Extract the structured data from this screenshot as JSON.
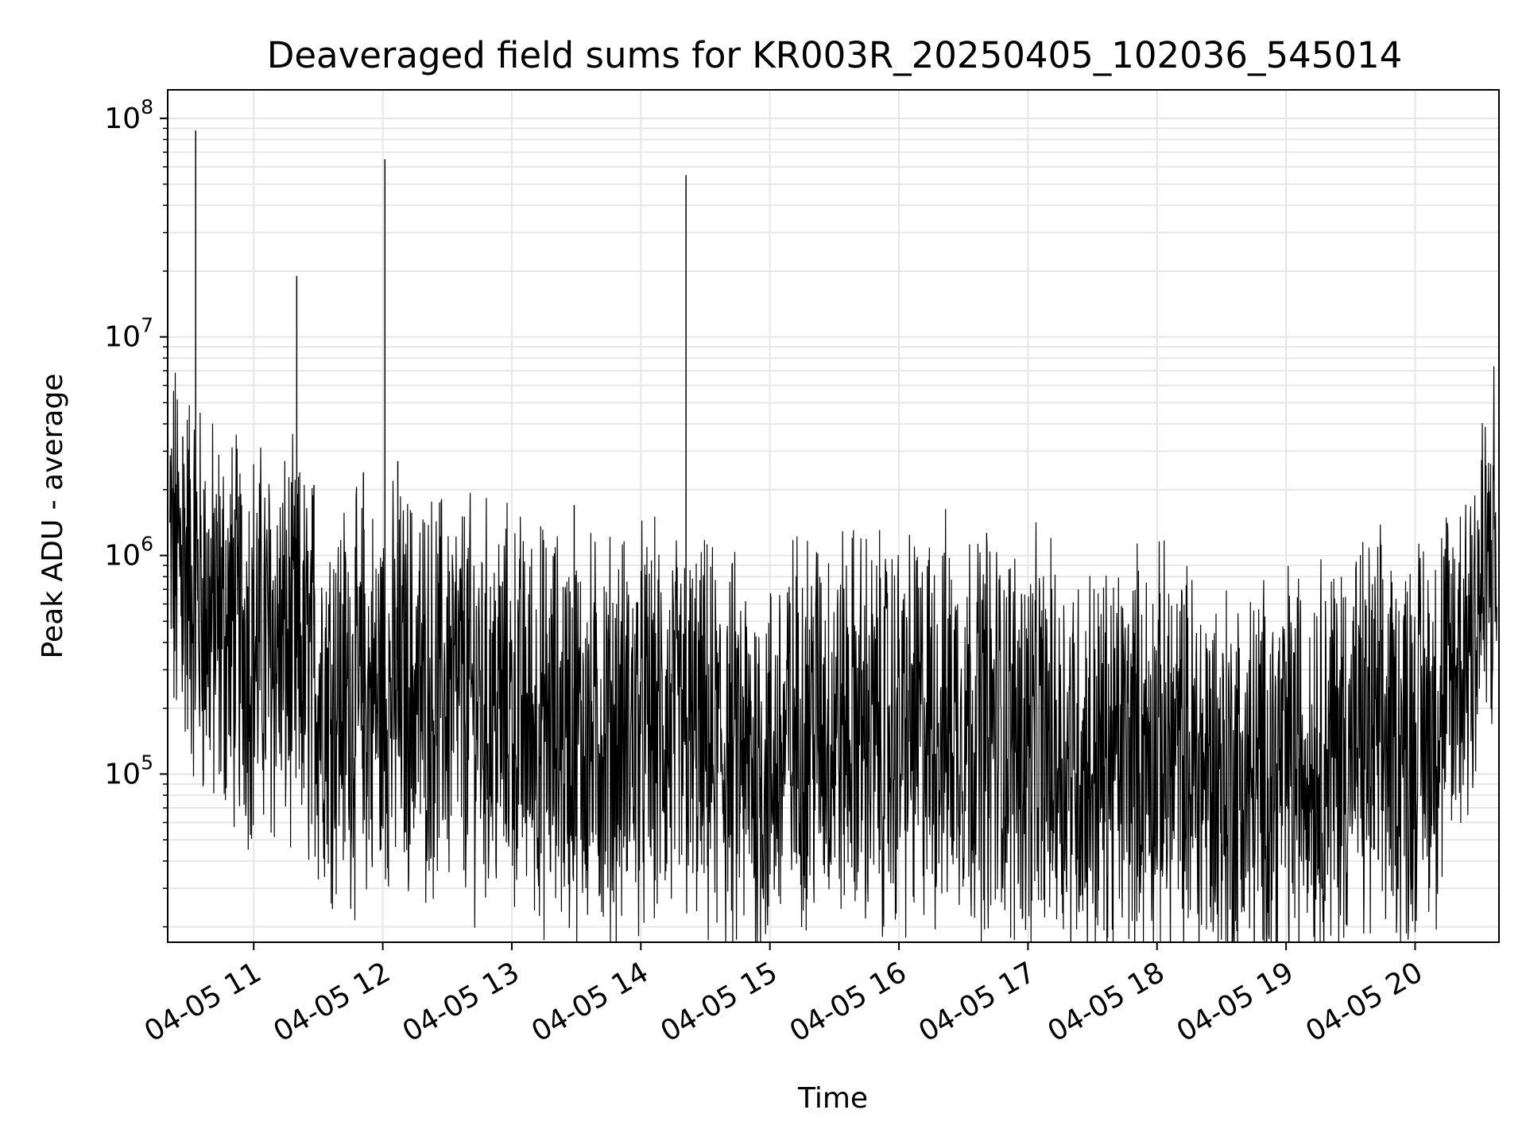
{
  "chart_data": {
    "type": "line",
    "title": "Deaveraged field sums for KR003R_20250405_102036_545014",
    "xlabel": "Time",
    "ylabel": "Peak ADU - average",
    "yscale": "log",
    "xlim": [
      "2025-04-05 10:20",
      "2025-04-05 20:39"
    ],
    "ylim": [
      17000,
      135000000
    ],
    "grid": true,
    "line_color": "#000000",
    "grid_color": "#e6e6e6",
    "x_ticks": [
      {
        "value": "2025-04-05 11:00",
        "label": "04-05 11"
      },
      {
        "value": "2025-04-05 12:00",
        "label": "04-05 12"
      },
      {
        "value": "2025-04-05 13:00",
        "label": "04-05 13"
      },
      {
        "value": "2025-04-05 14:00",
        "label": "04-05 14"
      },
      {
        "value": "2025-04-05 15:00",
        "label": "04-05 15"
      },
      {
        "value": "2025-04-05 16:00",
        "label": "04-05 16"
      },
      {
        "value": "2025-04-05 17:00",
        "label": "04-05 17"
      },
      {
        "value": "2025-04-05 18:00",
        "label": "04-05 18"
      },
      {
        "value": "2025-04-05 19:00",
        "label": "04-05 19"
      },
      {
        "value": "2025-04-05 20:00",
        "label": "04-05 20"
      }
    ],
    "y_ticks": [
      {
        "value": 100000,
        "base": "10",
        "exp": "5"
      },
      {
        "value": 1000000,
        "base": "10",
        "exp": "6"
      },
      {
        "value": 10000000,
        "base": "10",
        "exp": "7"
      },
      {
        "value": 100000000,
        "base": "10",
        "exp": "8"
      }
    ],
    "series": [
      {
        "x": [
          "2025-04-05 10:21",
          "2025-04-05 10:27",
          "2025-04-05 10:33",
          "2025-04-05 10:40",
          "2025-04-05 10:50",
          "2025-04-05 11:00",
          "2025-04-05 11:10",
          "2025-04-05 11:20",
          "2025-04-05 11:30",
          "2025-04-05 11:40",
          "2025-04-05 11:50",
          "2025-04-05 12:00",
          "2025-04-05 12:10",
          "2025-04-05 12:20",
          "2025-04-05 12:30",
          "2025-04-05 12:40",
          "2025-04-05 12:50",
          "2025-04-05 13:00",
          "2025-04-05 13:10",
          "2025-04-05 13:20",
          "2025-04-05 13:30",
          "2025-04-05 13:40",
          "2025-04-05 13:50",
          "2025-04-05 14:00",
          "2025-04-05 14:10",
          "2025-04-05 14:20",
          "2025-04-05 14:30",
          "2025-04-05 14:40",
          "2025-04-05 14:50",
          "2025-04-05 15:00",
          "2025-04-05 15:10",
          "2025-04-05 15:20",
          "2025-04-05 15:30",
          "2025-04-05 15:40",
          "2025-04-05 15:50",
          "2025-04-05 16:00",
          "2025-04-05 16:10",
          "2025-04-05 16:20",
          "2025-04-05 16:30",
          "2025-04-05 16:40",
          "2025-04-05 16:50",
          "2025-04-05 17:00",
          "2025-04-05 17:10",
          "2025-04-05 17:20",
          "2025-04-05 17:30",
          "2025-04-05 17:40",
          "2025-04-05 17:50",
          "2025-04-05 18:00",
          "2025-04-05 18:10",
          "2025-04-05 18:20",
          "2025-04-05 18:30",
          "2025-04-05 18:40",
          "2025-04-05 18:50",
          "2025-04-05 19:00",
          "2025-04-05 19:10",
          "2025-04-05 19:20",
          "2025-04-05 19:30",
          "2025-04-05 19:40",
          "2025-04-05 19:50",
          "2025-04-05 20:00",
          "2025-04-05 20:10",
          "2025-04-05 20:20",
          "2025-04-05 20:30",
          "2025-04-05 20:38"
        ],
        "y": [
          1000000,
          900000,
          700000,
          500000,
          450000,
          400000,
          380000,
          340000,
          260000,
          230000,
          210000,
          220000,
          250000,
          230000,
          240000,
          220000,
          200000,
          190000,
          170000,
          160000,
          150000,
          145000,
          150000,
          160000,
          150000,
          145000,
          130000,
          120000,
          110000,
          100000,
          150000,
          180000,
          160000,
          165000,
          145000,
          150000,
          160000,
          170000,
          175000,
          165000,
          150000,
          140000,
          130000,
          120000,
          110000,
          115000,
          130000,
          125000,
          115000,
          105000,
          95000,
          90000,
          92000,
          110000,
          120000,
          130000,
          135000,
          140000,
          135000,
          150000,
          180000,
          300000,
          650000,
          1000000
        ]
      }
    ],
    "spikes": [
      {
        "x": "2025-04-05 10:33",
        "y": 88000000
      },
      {
        "x": "2025-04-05 11:20",
        "y": 19000000
      },
      {
        "x": "2025-04-05 12:01",
        "y": 65000000
      },
      {
        "x": "2025-04-05 14:21",
        "y": 55000000
      },
      {
        "x": "2025-04-05 11:51",
        "y": 2400000
      },
      {
        "x": "2025-04-05 12:07",
        "y": 2700000
      },
      {
        "x": "2025-04-05 13:29",
        "y": 1700000
      },
      {
        "x": "2025-04-05 11:28",
        "y": 2100000
      },
      {
        "x": "2025-04-05 10:27",
        "y": 3500000
      }
    ]
  }
}
